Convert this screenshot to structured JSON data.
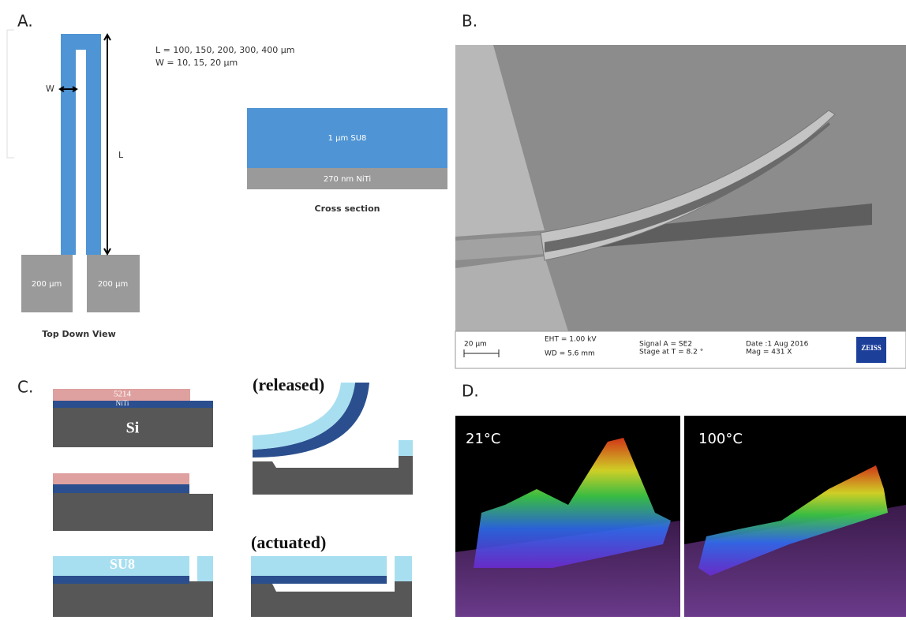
{
  "panels": {
    "a": {
      "label": "A.",
      "param_l": "L = 100, 150, 200, 300, 400 µm",
      "param_w": "W = 10, 15, 20 µm",
      "w_marker": "W",
      "l_marker": "L",
      "pad_left": "200 µm",
      "pad_right": "200 µm",
      "top_view_caption": "Top Down View",
      "layer_su8": "1 µm SU8",
      "layer_niti": "270 nm NiTi",
      "cross_section_caption": "Cross section"
    },
    "b": {
      "label": "B.",
      "scale": "20 µm",
      "eht": "EHT = 1.00 kV",
      "wd": "WD = 5.6 mm",
      "signal": "Signal A = SE2",
      "stage": "Stage at T = 8.2 °",
      "date": "Date :1 Aug 2016",
      "mag": "Mag = 431 X",
      "brand": "ZEISS"
    },
    "c": {
      "label": "C.",
      "layer_5214": "5214",
      "layer_niti": "NiTi",
      "layer_si": "Si",
      "layer_su8": "SU8",
      "released": "(released)",
      "actuated": "(actuated)"
    },
    "d": {
      "label": "D.",
      "temp_left": "21°C",
      "temp_right": "100°C"
    }
  }
}
